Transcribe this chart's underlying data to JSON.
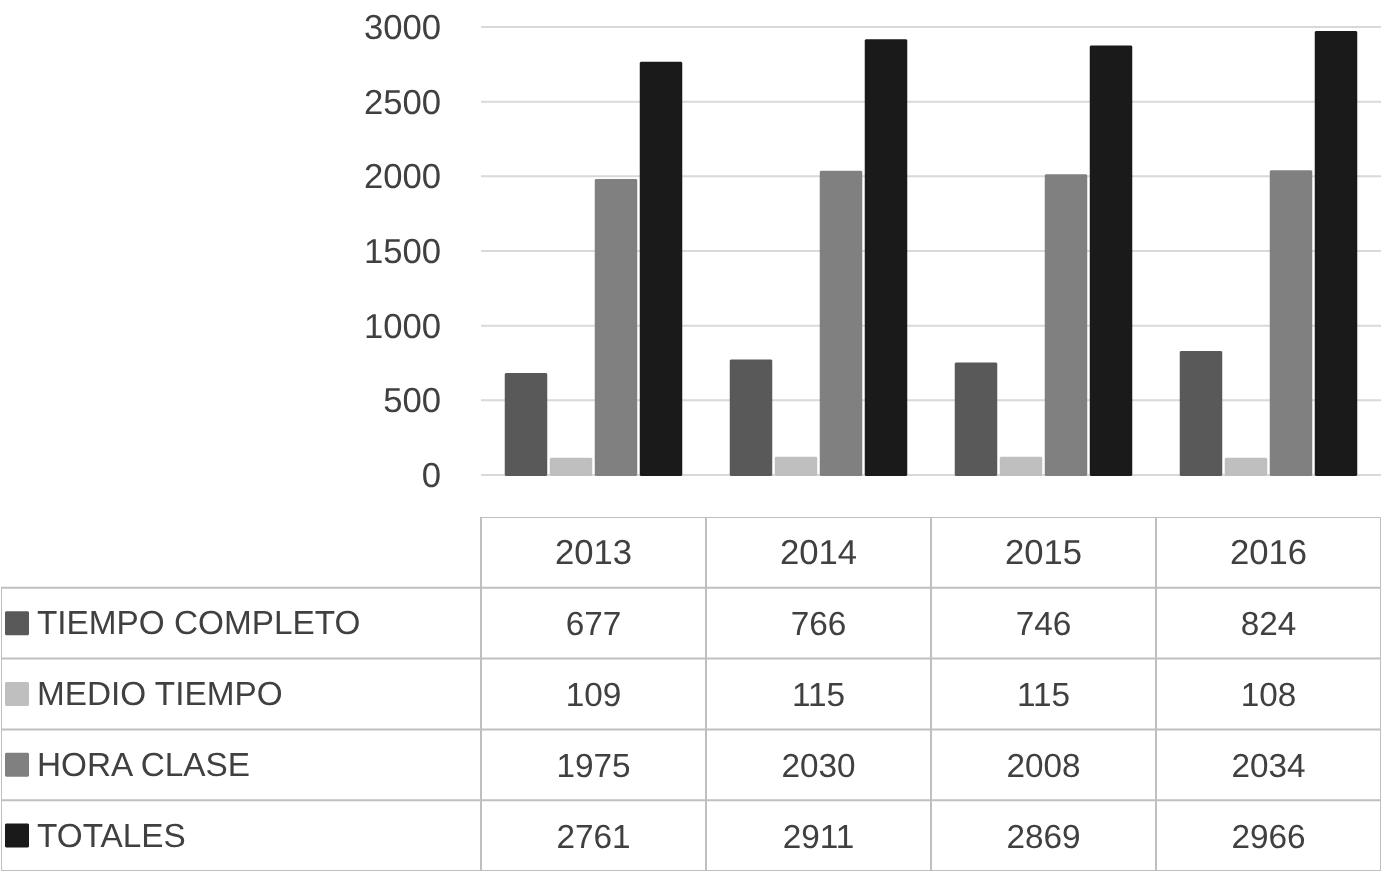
{
  "chart_data": {
    "type": "bar",
    "categories": [
      "2013",
      "2014",
      "2015",
      "2016"
    ],
    "series": [
      {
        "name": "TIEMPO COMPLETO",
        "color": "#595959",
        "values": [
          677,
          766,
          746,
          824
        ]
      },
      {
        "name": "MEDIO TIEMPO",
        "color": "#bfbfbf",
        "values": [
          109,
          115,
          115,
          108
        ]
      },
      {
        "name": "HORA CLASE",
        "color": "#808080",
        "values": [
          1975,
          2030,
          2008,
          2034
        ]
      },
      {
        "name": "TOTALES",
        "color": "#1a1a1a",
        "values": [
          2761,
          2911,
          2869,
          2966
        ]
      }
    ],
    "ylim": [
      0,
      3000
    ],
    "yticks": [
      0,
      500,
      1000,
      1500,
      2000,
      2500,
      3000
    ],
    "grid": "y",
    "legend": "bottom",
    "data_labels": true
  }
}
